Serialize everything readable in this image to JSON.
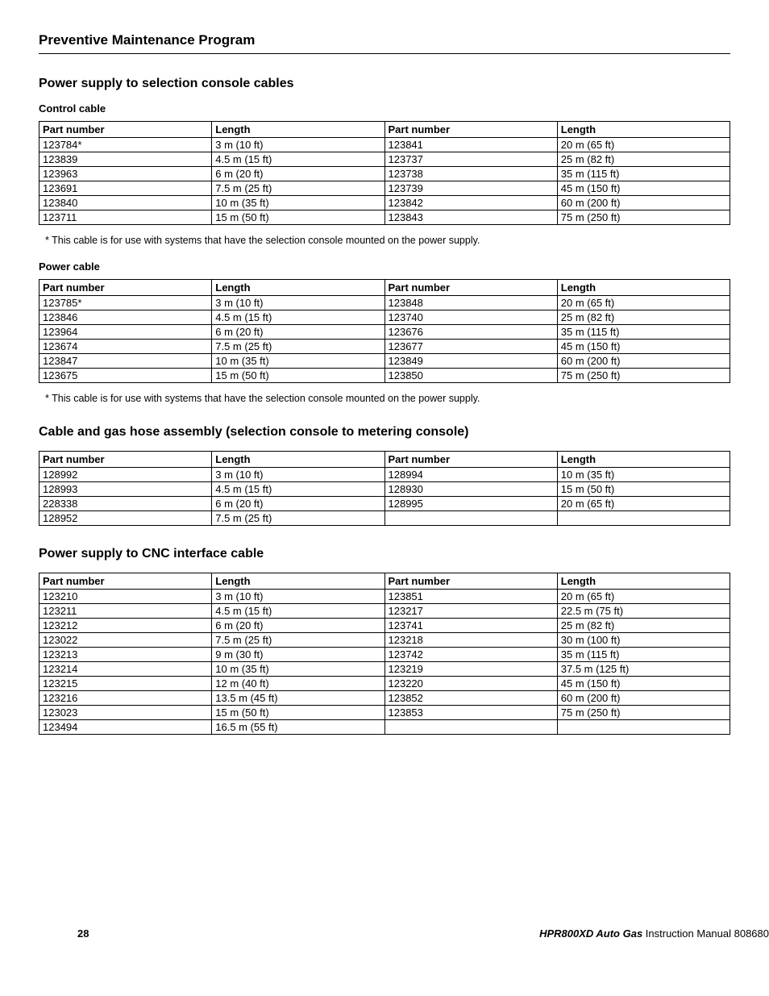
{
  "header": {
    "title": "Preventive Maintenance Program"
  },
  "sections": {
    "s1": {
      "title": "Power supply to selection console cables",
      "sub1": {
        "label": "Control cable",
        "columns": [
          "Part number",
          "Length",
          "Part number",
          "Length"
        ],
        "rows": [
          [
            "123784*",
            "3 m (10 ft)",
            "123841",
            "20 m (65 ft)"
          ],
          [
            "123839",
            "4.5 m (15 ft)",
            "123737",
            "25 m (82 ft)"
          ],
          [
            "123963",
            "6 m (20 ft)",
            "123738",
            "35 m (115 ft)"
          ],
          [
            "123691",
            "7.5 m (25 ft)",
            "123739",
            "45 m (150 ft)"
          ],
          [
            "123840",
            "10 m (35 ft)",
            "123842",
            "60 m (200 ft)"
          ],
          [
            "123711",
            "15 m (50 ft)",
            "123843",
            "75 m (250 ft)"
          ]
        ],
        "footnote": "*  This cable is for use with systems that have the selection console mounted on the power supply."
      },
      "sub2": {
        "label": "Power cable",
        "columns": [
          "Part number",
          "Length",
          "Part number",
          "Length"
        ],
        "rows": [
          [
            "123785*",
            "3 m (10 ft)",
            "123848",
            "20 m (65 ft)"
          ],
          [
            "123846",
            "4.5 m (15 ft)",
            "123740",
            "25 m (82 ft)"
          ],
          [
            "123964",
            "6 m (20 ft)",
            "123676",
            "35 m (115 ft)"
          ],
          [
            "123674",
            "7.5 m (25 ft)",
            "123677",
            "45 m (150 ft)"
          ],
          [
            "123847",
            "10 m (35 ft)",
            "123849",
            "60 m (200 ft)"
          ],
          [
            "123675",
            "15 m (50 ft)",
            "123850",
            "75 m (250 ft)"
          ]
        ],
        "footnote": "*  This cable is for use with systems that have the selection console mounted on the power supply."
      }
    },
    "s2": {
      "title": "Cable and gas hose assembly (selection console to metering console)",
      "columns": [
        "Part number",
        "Length",
        "Part number",
        "Length"
      ],
      "rows": [
        [
          "128992",
          "3 m (10 ft)",
          "128994",
          "10 m (35 ft)"
        ],
        [
          "128993",
          "4.5 m (15 ft)",
          "128930",
          "15 m (50 ft)"
        ],
        [
          "228338",
          "6 m (20 ft)",
          "128995",
          "20 m (65 ft)"
        ],
        [
          "128952",
          "7.5 m (25 ft)",
          "",
          ""
        ]
      ]
    },
    "s3": {
      "title": "Power supply to CNC interface cable",
      "columns": [
        "Part number",
        "Length",
        "Part number",
        "Length"
      ],
      "rows": [
        [
          "123210",
          "3 m (10 ft)",
          "123851",
          "20 m (65 ft)"
        ],
        [
          "123211",
          "4.5 m (15 ft)",
          "123217",
          "22.5 m (75 ft)"
        ],
        [
          "123212",
          "6 m (20 ft)",
          "123741",
          "25 m (82 ft)"
        ],
        [
          "123022",
          "7.5 m (25 ft)",
          "123218",
          "30 m (100 ft)"
        ],
        [
          "123213",
          "9 m (30 ft)",
          "123742",
          "35 m (115 ft)"
        ],
        [
          "123214",
          "10 m (35 ft)",
          "123219",
          "37.5 m (125 ft)"
        ],
        [
          "123215",
          "12 m (40 ft)",
          "123220",
          "45 m (150 ft)"
        ],
        [
          "123216",
          "13.5 m (45 ft)",
          "123852",
          "60 m (200 ft)"
        ],
        [
          "123023",
          "15 m (50 ft)",
          "123853",
          "75 m (250 ft)"
        ],
        [
          "123494",
          "16.5 m (55 ft)",
          "",
          ""
        ]
      ]
    }
  },
  "footer": {
    "page": "28",
    "product": "HPR800XD Auto Gas",
    "doc": "  Instruction Manual  808680"
  }
}
